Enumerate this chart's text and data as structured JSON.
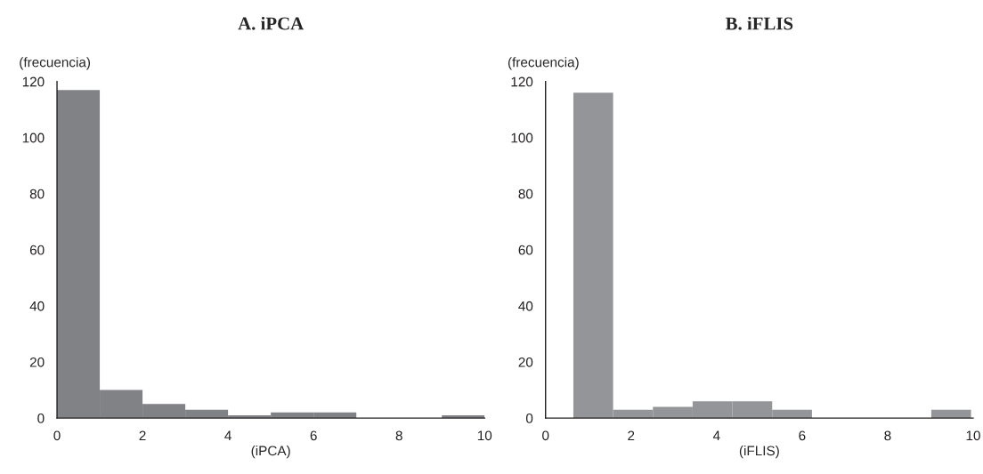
{
  "chart_data": [
    {
      "type": "histogram",
      "title": "A. iPCA",
      "xlabel": "(iPCA)",
      "ylabel": "(frecuencia)",
      "bins": [
        0,
        1,
        2,
        3,
        4,
        5,
        6,
        7,
        8,
        9,
        10
      ],
      "values": [
        117,
        10,
        5,
        3,
        1,
        2,
        2,
        0,
        0,
        1
      ],
      "color": "#808285",
      "xlim": [
        0,
        10
      ],
      "xticks": [
        0,
        2,
        4,
        6,
        8,
        10
      ],
      "ylim": [
        0,
        120
      ],
      "yticks": [
        0,
        20,
        40,
        60,
        80,
        100,
        120
      ],
      "grid": false,
      "legend": false
    },
    {
      "type": "histogram",
      "title": "B. iFLIS",
      "xlabel": "(iFLIS)",
      "ylabel": "(frecuencia)",
      "bins": [
        0.65,
        1.58,
        2.51,
        3.44,
        4.37,
        5.3,
        6.23,
        7.16,
        8.09,
        9.02,
        9.95
      ],
      "values": [
        116,
        3,
        4,
        6,
        6,
        3,
        0,
        0,
        0,
        3
      ],
      "color": "#939598",
      "xlim": [
        0,
        10
      ],
      "xticks": [
        0,
        2,
        4,
        6,
        8,
        10
      ],
      "ylim": [
        0,
        120
      ],
      "yticks": [
        0,
        20,
        40,
        60,
        80,
        100,
        120
      ],
      "grid": false,
      "legend": false
    }
  ]
}
